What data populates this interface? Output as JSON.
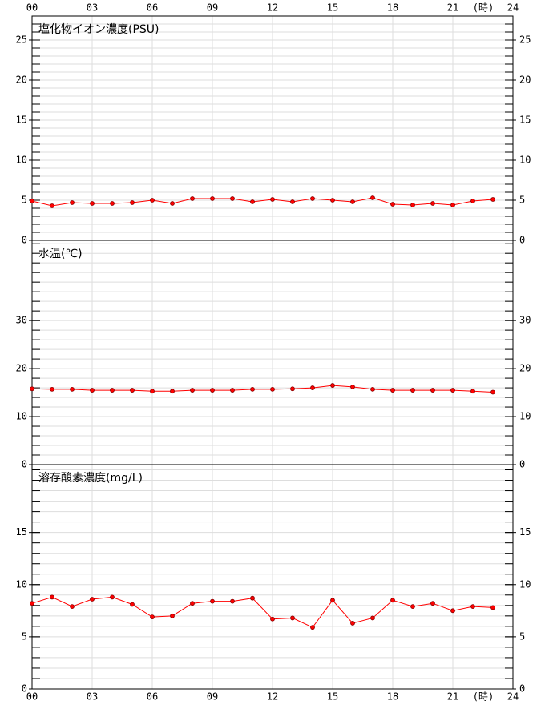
{
  "chart_data": [
    {
      "type": "line",
      "title": "塩化物イオン濃度(PSU)",
      "x_label": "(時)",
      "x": [
        0,
        1,
        2,
        3,
        4,
        5,
        6,
        7,
        8,
        9,
        10,
        11,
        12,
        13,
        14,
        15,
        16,
        17,
        18,
        19,
        20,
        21,
        22,
        23
      ],
      "xlim": [
        0,
        24
      ],
      "xticks": [
        {
          "value": 0,
          "label": "00"
        },
        {
          "value": 3,
          "label": "03"
        },
        {
          "value": 6,
          "label": "06"
        },
        {
          "value": 9,
          "label": "09"
        },
        {
          "value": 12,
          "label": "12"
        },
        {
          "value": 15,
          "label": "15"
        },
        {
          "value": 18,
          "label": "18"
        },
        {
          "value": 21,
          "label": "21"
        },
        {
          "value": 24,
          "label": "24"
        }
      ],
      "series": [
        {
          "color": "#ff0000",
          "values": [
            4.9,
            4.3,
            4.7,
            4.6,
            4.6,
            4.7,
            5.0,
            4.6,
            5.2,
            5.2,
            5.2,
            4.8,
            5.1,
            4.8,
            5.2,
            5.0,
            4.8,
            5.3,
            4.5,
            4.4,
            4.6,
            4.4,
            4.9,
            5.1
          ]
        }
      ],
      "ylim": [
        0,
        28
      ],
      "yticks": [
        0,
        5,
        10,
        15,
        20,
        25
      ],
      "minor_step": 1,
      "grid": true
    },
    {
      "type": "line",
      "title": "水温(℃)",
      "x": [
        0,
        1,
        2,
        3,
        4,
        5,
        6,
        7,
        8,
        9,
        10,
        11,
        12,
        13,
        14,
        15,
        16,
        17,
        18,
        19,
        20,
        21,
        22,
        23
      ],
      "xlim": [
        0,
        24
      ],
      "xticks": [
        0,
        3,
        6,
        9,
        12,
        15,
        18,
        21,
        24
      ],
      "series": [
        {
          "color": "#ff0000",
          "values": [
            15.8,
            15.7,
            15.7,
            15.5,
            15.5,
            15.5,
            15.3,
            15.3,
            15.5,
            15.5,
            15.5,
            15.7,
            15.7,
            15.8,
            16.0,
            16.5,
            16.2,
            15.7,
            15.5,
            15.5,
            15.5,
            15.5,
            15.3,
            15.1
          ]
        }
      ],
      "ylim": [
        0,
        46.7
      ],
      "yticks": [
        0,
        10,
        20,
        30
      ],
      "minor_step": 2,
      "grid": true
    },
    {
      "type": "line",
      "title": "溶存酸素濃度(mg/L)",
      "x_label": "(時)",
      "x": [
        0,
        1,
        2,
        3,
        4,
        5,
        6,
        7,
        8,
        9,
        10,
        11,
        12,
        13,
        14,
        15,
        16,
        17,
        18,
        19,
        20,
        21,
        22,
        23
      ],
      "xlim": [
        0,
        24
      ],
      "xticks": [
        {
          "value": 0,
          "label": "00"
        },
        {
          "value": 3,
          "label": "03"
        },
        {
          "value": 6,
          "label": "06"
        },
        {
          "value": 9,
          "label": "09"
        },
        {
          "value": 12,
          "label": "12"
        },
        {
          "value": 15,
          "label": "15"
        },
        {
          "value": 18,
          "label": "18"
        },
        {
          "value": 21,
          "label": "21"
        },
        {
          "value": 24,
          "label": "24"
        }
      ],
      "series": [
        {
          "color": "#ff0000",
          "values": [
            8.2,
            8.8,
            7.9,
            8.6,
            8.8,
            8.1,
            6.9,
            7.0,
            8.2,
            8.4,
            8.4,
            8.7,
            6.7,
            6.8,
            5.9,
            8.5,
            6.3,
            6.8,
            8.5,
            7.9,
            8.2,
            7.5,
            7.9,
            7.8
          ]
        }
      ],
      "ylim": [
        0,
        21.5
      ],
      "yticks": [
        0,
        5,
        10,
        15
      ],
      "minor_step": 1,
      "grid": true
    }
  ]
}
